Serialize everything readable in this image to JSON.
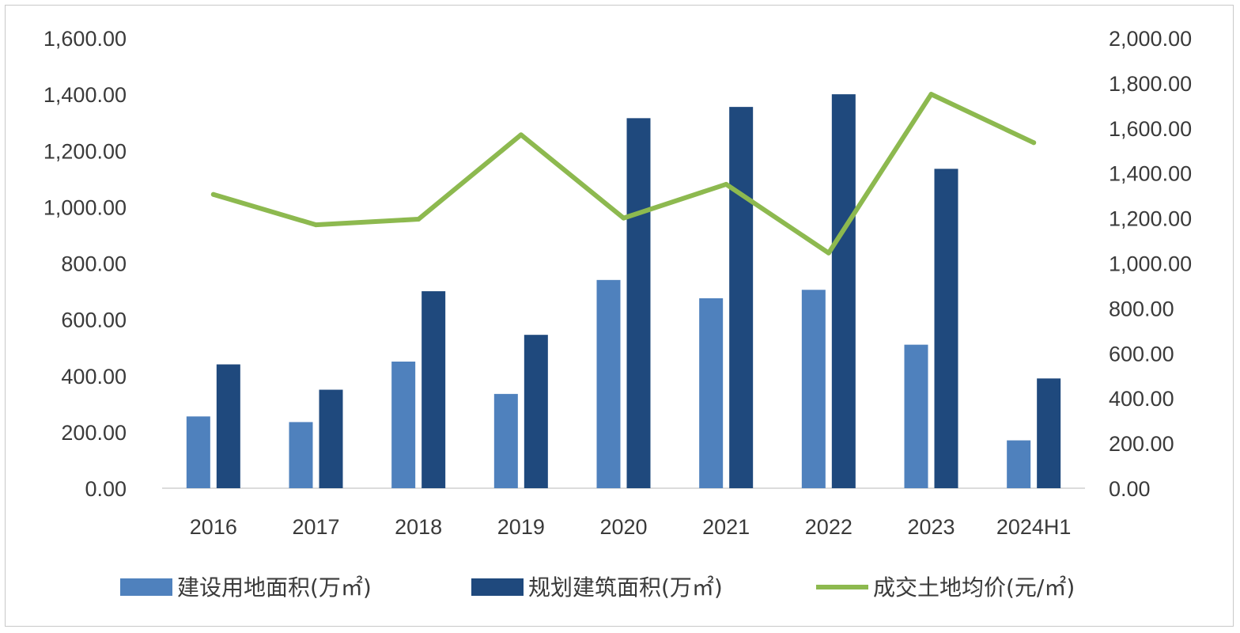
{
  "chart_data": {
    "type": "bar",
    "categories": [
      "2016",
      "2017",
      "2018",
      "2019",
      "2020",
      "2021",
      "2022",
      "2023",
      "2024H1"
    ],
    "series": [
      {
        "name": "建设用地面积(万㎡)",
        "type": "bar",
        "axis": "left",
        "color": "#4f81bd",
        "values": [
          255,
          235,
          450,
          335,
          740,
          675,
          705,
          510,
          170
        ]
      },
      {
        "name": "规划建筑面积(万㎡)",
        "type": "bar",
        "axis": "left",
        "color": "#1f497d",
        "values": [
          440,
          350,
          700,
          545,
          1315,
          1355,
          1400,
          1135,
          390
        ]
      },
      {
        "name": "成交土地均价(元/㎡)",
        "type": "line",
        "axis": "right",
        "color": "#8db94f",
        "values": [
          1305,
          1170,
          1195,
          1570,
          1200,
          1350,
          1045,
          1750,
          1535
        ]
      }
    ],
    "y_left": {
      "range": [
        0,
        1600
      ],
      "ticks": [
        "0.00",
        "200.00",
        "400.00",
        "600.00",
        "800.00",
        "1,000.00",
        "1,200.00",
        "1,400.00",
        "1,600.00"
      ]
    },
    "y_right": {
      "range": [
        0,
        2000
      ],
      "ticks": [
        "0.00",
        "200.00",
        "400.00",
        "600.00",
        "800.00",
        "1,000.00",
        "1,200.00",
        "1,400.00",
        "1,600.00",
        "1,800.00",
        "2,000.00"
      ]
    },
    "grid": false,
    "legend_position": "bottom"
  }
}
